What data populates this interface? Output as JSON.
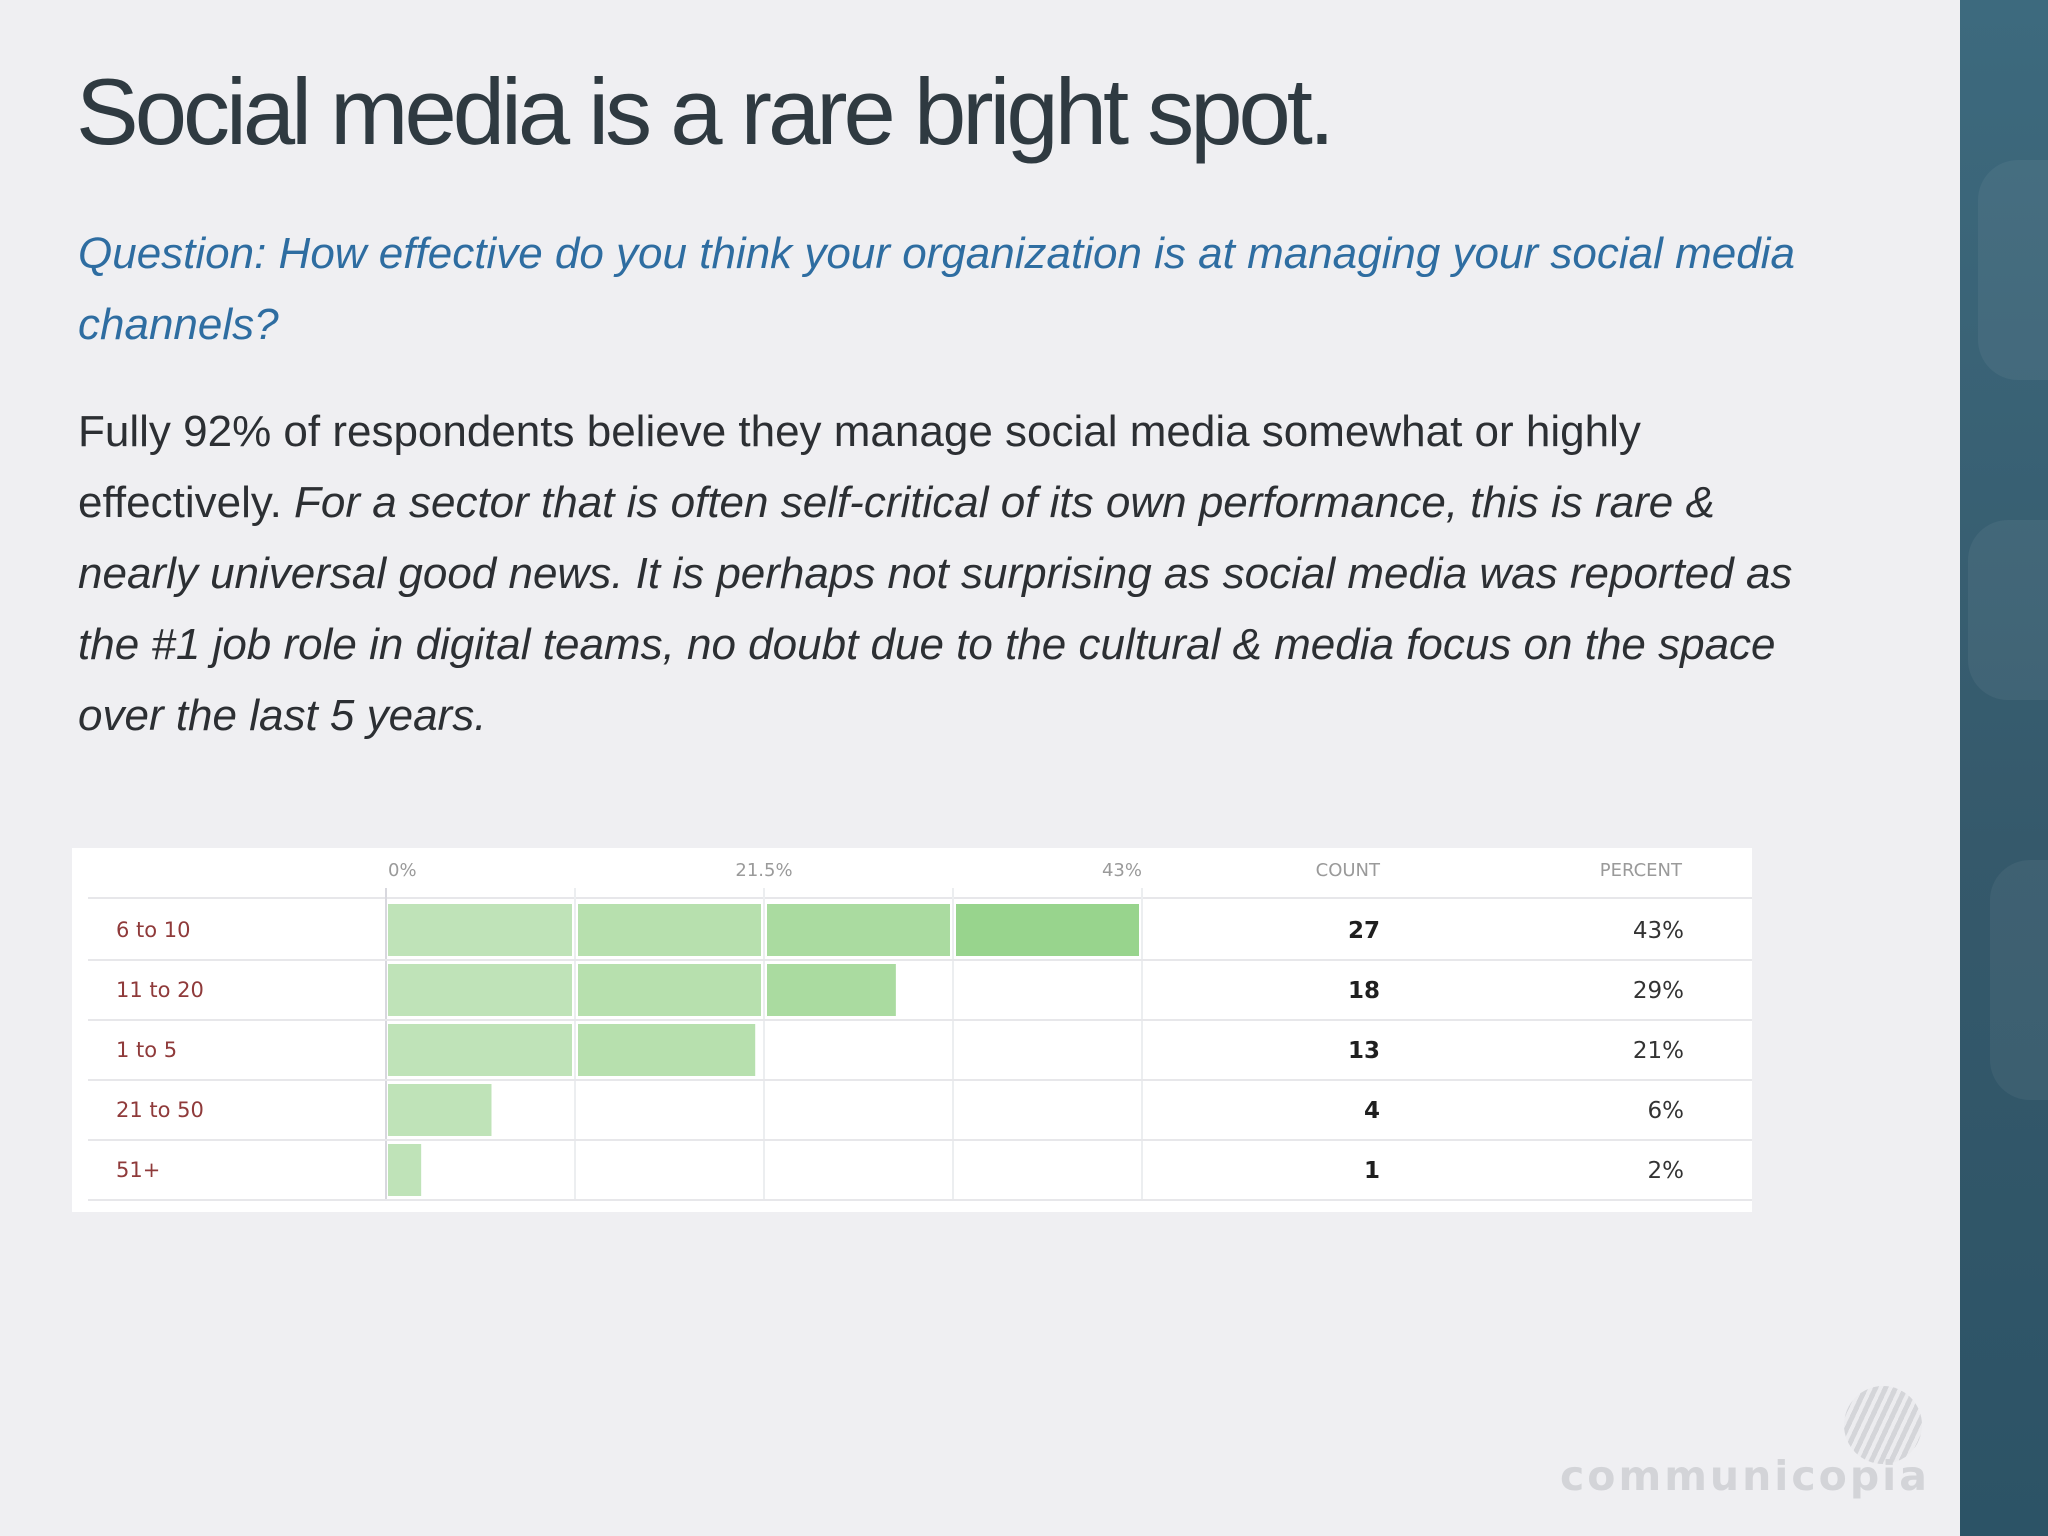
{
  "slide": {
    "title": "Social media is a rare bright spot.",
    "question": "Question: How effective do you think your organization is at managing your social media channels?",
    "body_plain": "Fully 92% of respondents believe they manage social media somewhat or highly effectively.",
    "body_italic": "For a sector that is often self-critical of its own performance, this is rare & nearly universal good news. It is perhaps not surprising as social media was reported as the #1 job role in digital teams, no doubt due to the cultural & media focus on the space over the last 5 years."
  },
  "chart_data": {
    "type": "bar",
    "orientation": "horizontal",
    "categories": [
      "6 to 10",
      "11 to 20",
      "1 to 5",
      "21 to 50",
      "51+"
    ],
    "series": [
      {
        "values": [
          43,
          29,
          21,
          6,
          2
        ]
      }
    ],
    "counts": [
      "27",
      "18",
      "13",
      "4",
      "1"
    ],
    "percent_labels": [
      "43%",
      "29%",
      "21%",
      "6%",
      "2%"
    ],
    "axis_ticks": [
      "0%",
      "21.5%",
      "43%"
    ],
    "xlim": [
      0,
      43
    ],
    "column_headers": {
      "count": "COUNT",
      "percent": "PERCENT"
    },
    "grid": true,
    "colors": {
      "bar_light": "#bfe3b8",
      "bar_dark": "#98d48d",
      "category_text": "#8f3a3a"
    }
  },
  "brand": {
    "watermark": "communicopia"
  }
}
